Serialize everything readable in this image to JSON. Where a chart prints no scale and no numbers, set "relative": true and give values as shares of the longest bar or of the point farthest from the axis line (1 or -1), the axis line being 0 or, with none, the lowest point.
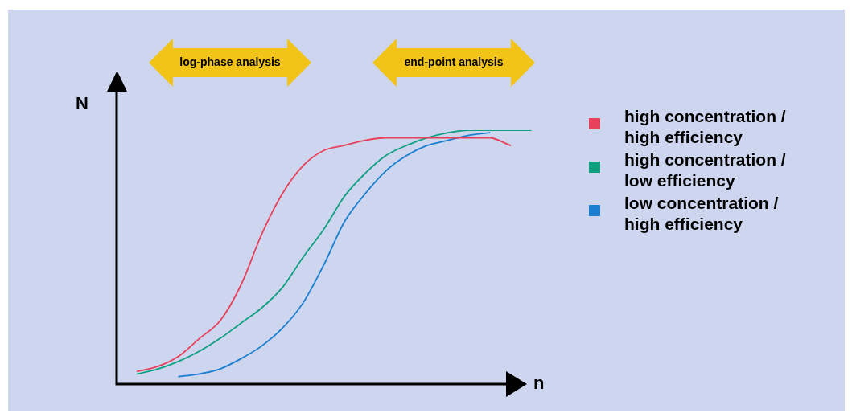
{
  "chart_data": {
    "type": "line",
    "relative": true,
    "xlabel": "n",
    "ylabel": "N",
    "legend": "right",
    "annotations": [
      "log-phase analysis",
      "end-point analysis"
    ],
    "categories": [
      null,
      null,
      null,
      null,
      null,
      null,
      null,
      null,
      null,
      null,
      null,
      null,
      null,
      null,
      null,
      null,
      null,
      null,
      null,
      null,
      null
    ],
    "series": [
      {
        "name": "high concentration / high efficiency",
        "color": "#e8405a",
        "values": [
          null,
          0.05,
          0.07,
          0.11,
          0.18,
          0.25,
          0.39,
          0.59,
          0.75,
          0.86,
          0.92,
          0.94,
          0.96,
          0.97,
          0.97,
          0.97,
          0.97,
          0.97,
          0.97,
          0.94,
          null
        ]
      },
      {
        "name": "high concentration / low efficiency",
        "color": "#10a080",
        "values": [
          null,
          0.04,
          0.06,
          0.09,
          0.13,
          0.18,
          0.24,
          0.3,
          0.38,
          0.5,
          0.61,
          0.74,
          0.83,
          0.9,
          0.94,
          0.97,
          0.99,
          1,
          1,
          1,
          1
        ]
      },
      {
        "name": "low concentration / high efficiency",
        "color": "#1a7fd0",
        "values": [
          null,
          null,
          null,
          0.03,
          0.04,
          0.06,
          0.1,
          0.15,
          0.22,
          0.32,
          0.47,
          0.64,
          0.75,
          0.84,
          0.9,
          0.94,
          0.96,
          0.98,
          0.99,
          null,
          null
        ]
      }
    ]
  }
}
